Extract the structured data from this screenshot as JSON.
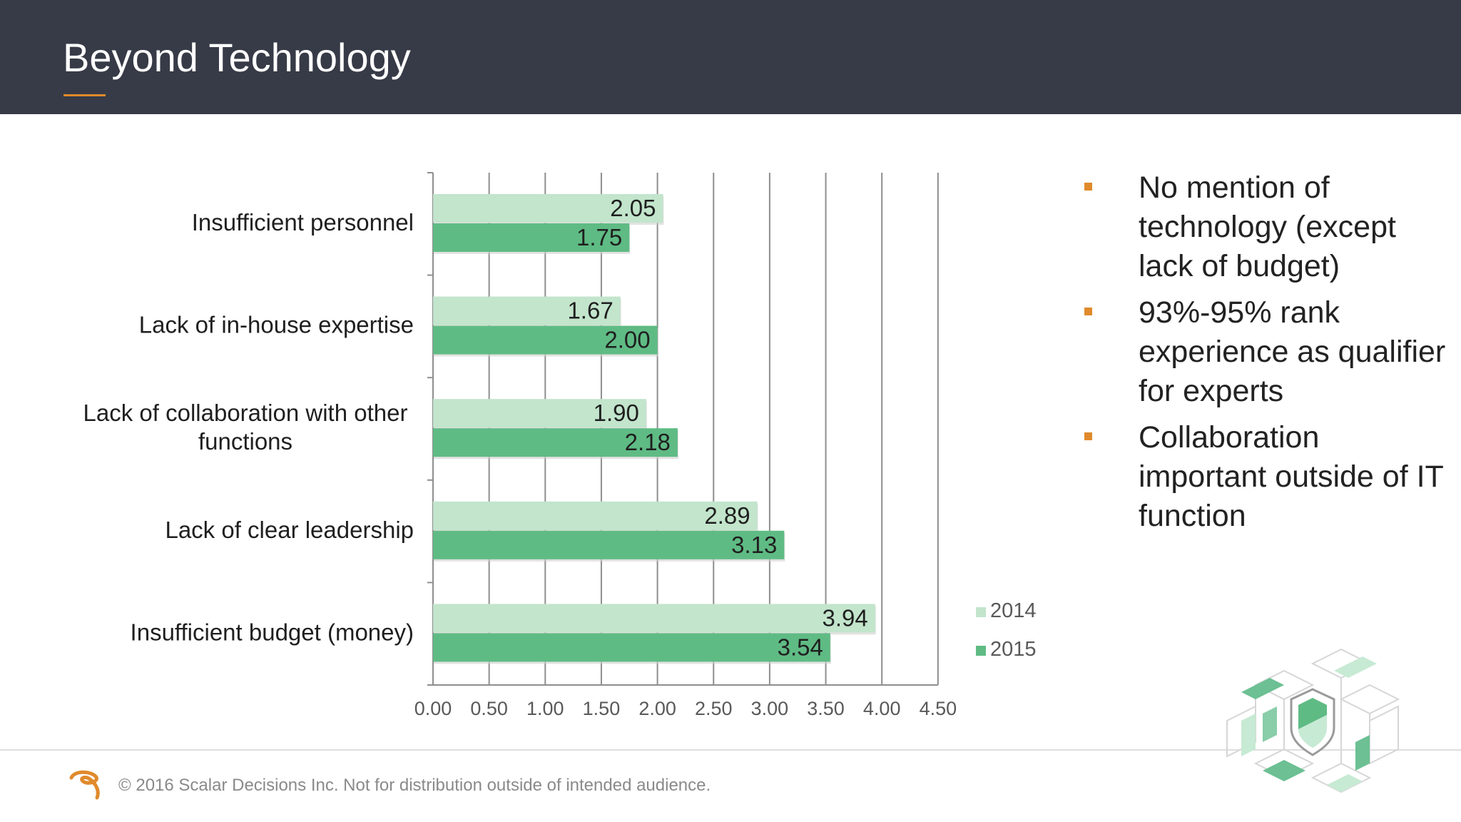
{
  "slide": {
    "title": "Beyond Technology",
    "accent_color": "#e08a2c",
    "header_bg": "#373b47"
  },
  "chart_data": {
    "type": "bar",
    "orientation": "horizontal",
    "categories": [
      "Insufficient personnel",
      "Lack of in-house expertise",
      "Lack of collaboration with other functions",
      "Lack of clear leadership",
      "Insufficient budget (money)"
    ],
    "category_lines": [
      [
        "Insufficient personnel"
      ],
      [
        "Lack of in-house expertise"
      ],
      [
        "Lack of collaboration with other",
        "functions"
      ],
      [
        "Lack of clear leadership"
      ],
      [
        "Insufficient budget (money)"
      ]
    ],
    "series": [
      {
        "name": "2014",
        "color": "#c2e5cc",
        "values": [
          2.05,
          1.67,
          1.9,
          2.89,
          3.94
        ],
        "labels": [
          "2.05",
          "1.67",
          "1.90",
          "2.89",
          "3.94"
        ]
      },
      {
        "name": "2015",
        "color": "#5fbb84",
        "values": [
          1.75,
          2.0,
          2.18,
          3.13,
          3.54
        ],
        "labels": [
          "1.75",
          "2.00",
          "2.18",
          "3.13",
          "3.54"
        ]
      }
    ],
    "xlim": [
      0,
      4.5
    ],
    "xticks": [
      "0.00",
      "0.50",
      "1.00",
      "1.50",
      "2.00",
      "2.50",
      "3.00",
      "3.50",
      "4.00",
      "4.50"
    ],
    "grid": "vertical",
    "legend_position": "bottom-right",
    "title": "",
    "xlabel": "",
    "ylabel": ""
  },
  "bullets": [
    "No mention of technology (except lack of budget)",
    "93%-95% rank experience as qualifier for experts",
    "Collaboration important outside of IT function"
  ],
  "footer": {
    "copyright": "© 2016 Scalar Decisions Inc. Not for distribution outside of intended audience."
  }
}
